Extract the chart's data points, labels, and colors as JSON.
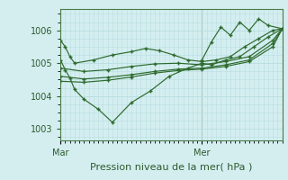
{
  "title": "Pression niveau de la mer( hPa )",
  "bg_color": "#d4eef0",
  "plot_bg": "#d4eef0",
  "grid_color": "#b8dde0",
  "line_color": "#2d6a2d",
  "ylim": [
    1002.65,
    1006.65
  ],
  "yticks": [
    1003,
    1004,
    1005,
    1006
  ],
  "xlim": [
    0,
    47
  ],
  "vline_x": 30,
  "xtick_positions": [
    0,
    30
  ],
  "xtick_labels": [
    "Mar",
    "Mer"
  ],
  "series": [
    {
      "x": [
        0,
        1,
        2,
        3,
        7,
        11,
        15,
        18,
        21,
        24,
        27,
        30,
        33,
        36,
        39,
        42,
        45,
        47
      ],
      "y": [
        1005.7,
        1005.5,
        1005.2,
        1005.0,
        1005.1,
        1005.25,
        1005.35,
        1005.45,
        1005.38,
        1005.25,
        1005.1,
        1005.05,
        1005.1,
        1005.2,
        1005.5,
        1005.75,
        1006.0,
        1006.05
      ]
    },
    {
      "x": [
        0,
        1,
        2,
        3,
        5,
        8,
        11,
        15,
        19,
        23,
        27,
        30,
        32,
        35,
        38,
        41,
        44,
        47
      ],
      "y": [
        1005.1,
        1004.8,
        1004.55,
        1004.2,
        1003.9,
        1003.6,
        1003.2,
        1003.8,
        1004.15,
        1004.6,
        1004.85,
        1005.0,
        1004.95,
        1005.1,
        1005.2,
        1005.5,
        1005.8,
        1006.05
      ]
    },
    {
      "x": [
        0,
        5,
        10,
        15,
        20,
        25,
        30,
        35,
        40,
        45,
        47
      ],
      "y": [
        1004.85,
        1004.75,
        1004.8,
        1004.9,
        1004.98,
        1005.0,
        1004.95,
        1005.05,
        1005.2,
        1005.7,
        1006.05
      ]
    },
    {
      "x": [
        0,
        5,
        10,
        15,
        20,
        25,
        30,
        35,
        40,
        45,
        47
      ],
      "y": [
        1004.6,
        1004.52,
        1004.57,
        1004.65,
        1004.75,
        1004.82,
        1004.85,
        1004.95,
        1005.1,
        1005.6,
        1006.05
      ]
    },
    {
      "x": [
        0,
        5,
        10,
        15,
        20,
        25,
        30,
        35,
        40,
        45,
        47
      ],
      "y": [
        1004.45,
        1004.42,
        1004.48,
        1004.58,
        1004.7,
        1004.78,
        1004.82,
        1004.9,
        1005.05,
        1005.5,
        1006.05
      ]
    },
    {
      "x": [
        30,
        32,
        34,
        36,
        38,
        40,
        42,
        44,
        47
      ],
      "y": [
        1005.1,
        1005.65,
        1006.1,
        1005.85,
        1006.25,
        1006.0,
        1006.35,
        1006.15,
        1006.05
      ]
    }
  ]
}
